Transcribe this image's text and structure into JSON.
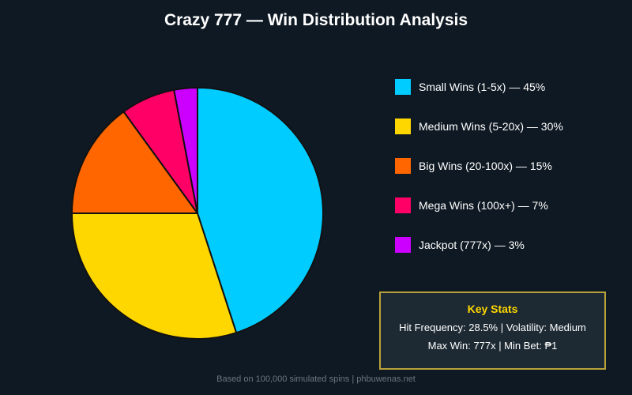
{
  "chart_data": {
    "type": "pie",
    "title": "Crazy 777 — Win Distribution Analysis",
    "categories": [
      "Small Wins (1-5x)",
      "Medium Wins (5-20x)",
      "Big Wins (20-100x)",
      "Mega Wins (100x+)",
      "Jackpot (777x)"
    ],
    "values": [
      45,
      30,
      15,
      7,
      3
    ],
    "colors": [
      "#00ccff",
      "#ffd700",
      "#ff6600",
      "#ff0066",
      "#cc00ff"
    ],
    "legend_labels": [
      "Small Wins (1-5x) — 45%",
      "Medium Wins (5-20x) — 30%",
      "Big Wins (20-100x) — 15%",
      "Mega Wins (100x+) — 7%",
      "Jackpot (777x) — 3%"
    ],
    "legend_placement": "right",
    "start_angle": "top",
    "direction": "clockwise"
  },
  "stats": {
    "title": "Key Stats",
    "line1": "Hit Frequency: 28.5% | Volatility: Medium",
    "line2": "Max Win: 777x | Min Bet: ₱1"
  },
  "footer": "Based on 100,000 simulated spins | phbuwenas.net",
  "colors": {
    "background": "#0f1923",
    "stats_border": "#b8a23a",
    "stats_title": "#ffd700"
  }
}
